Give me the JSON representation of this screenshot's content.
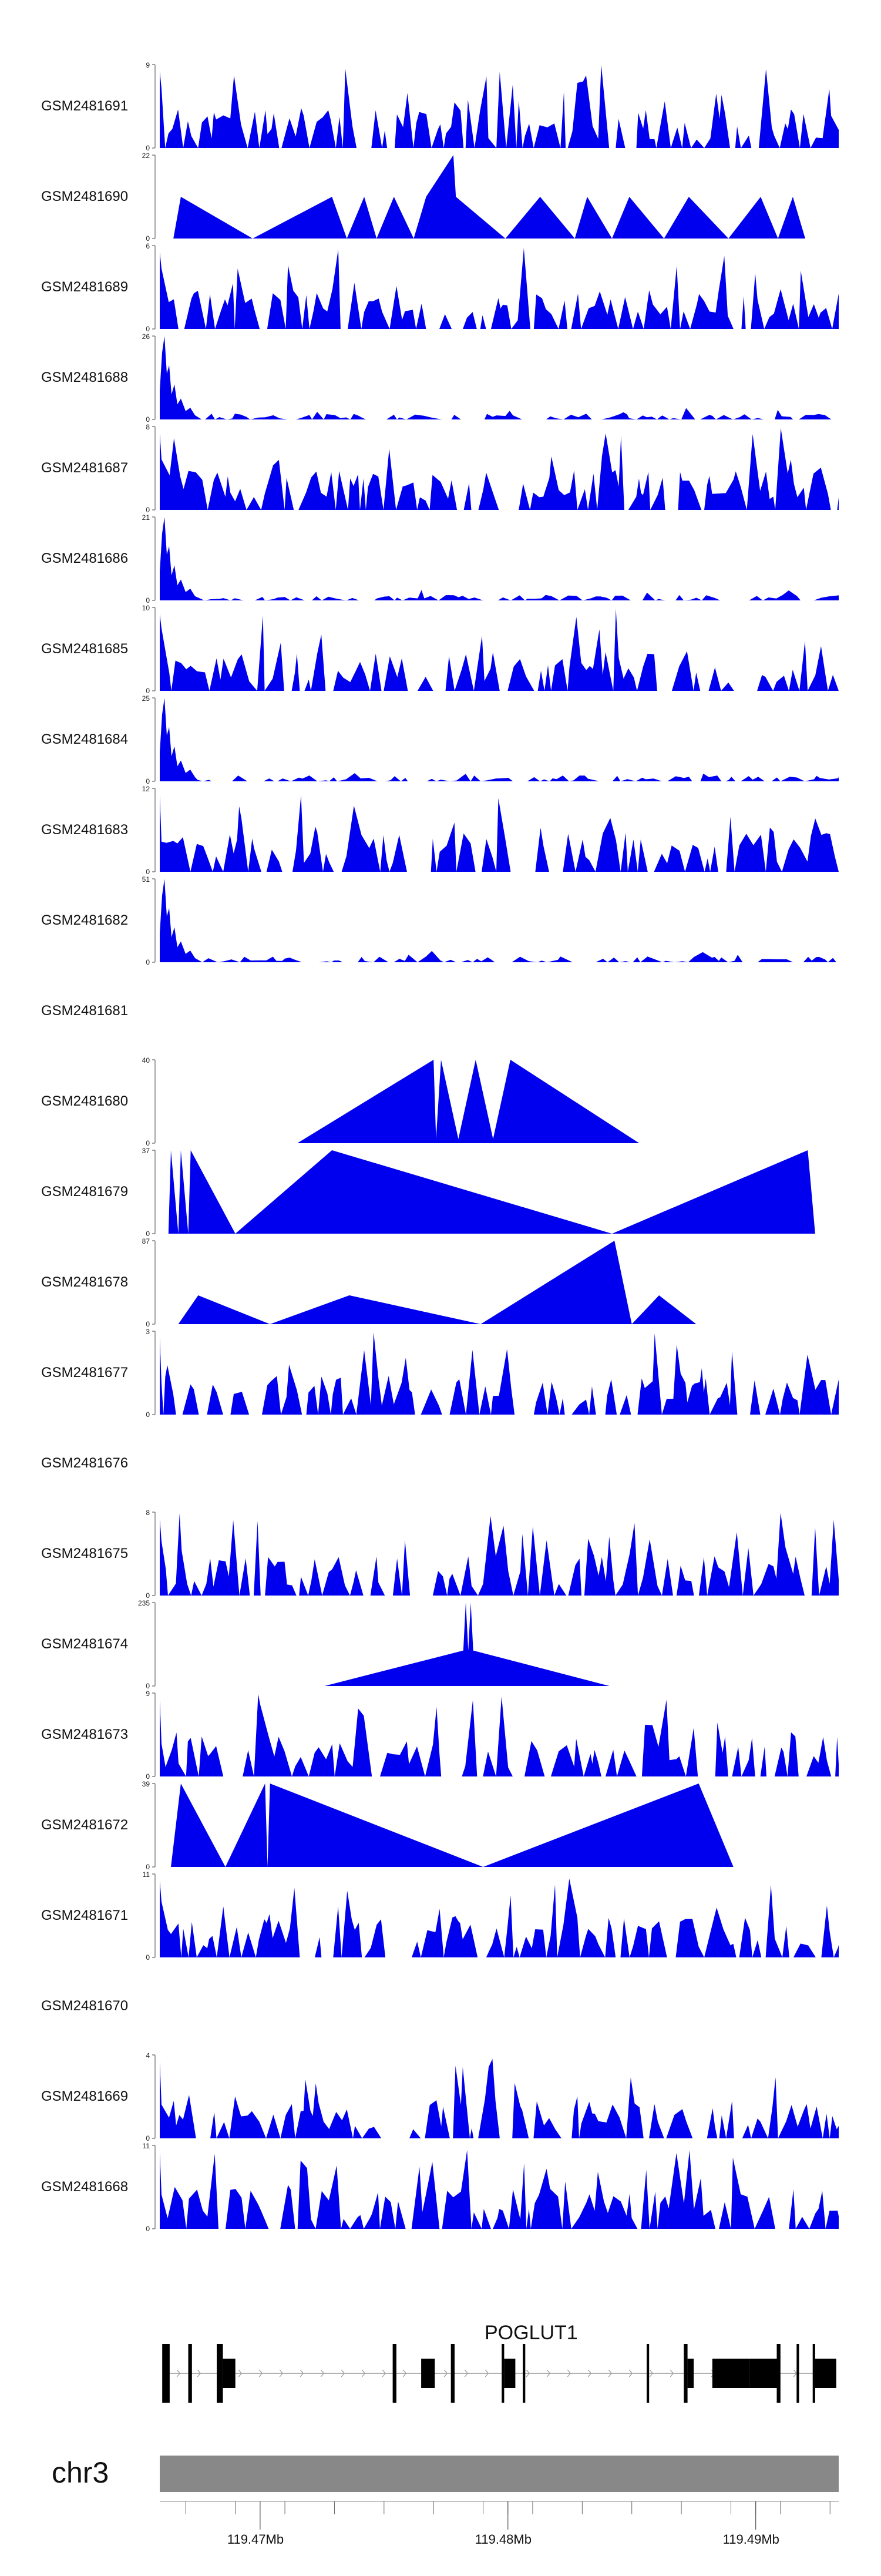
{
  "chart_data": {
    "type": "area",
    "colors": {
      "signal": "#0000ee",
      "gene": "#000000",
      "ideogram": "#888888",
      "intron": "#999999"
    },
    "tracks": [
      {
        "name": "GSM2481691",
        "ymax": 9,
        "shape": "dense-noise",
        "seed": 11
      },
      {
        "name": "GSM2481690",
        "ymax": 22,
        "shape": "sparse",
        "points": [
          [
            119.4665,
            0
          ],
          [
            119.4668,
            11
          ],
          [
            119.4697,
            0
          ],
          [
            119.4729,
            11
          ],
          [
            119.4735,
            0
          ],
          [
            119.4742,
            11
          ],
          [
            119.4747,
            0
          ],
          [
            119.4754,
            11
          ],
          [
            119.4762,
            0
          ],
          [
            119.4767,
            11
          ],
          [
            119.4778,
            22
          ],
          [
            119.4779,
            11
          ],
          [
            119.4799,
            0
          ],
          [
            119.4813,
            11
          ],
          [
            119.4827,
            0
          ],
          [
            119.4832,
            11
          ],
          [
            119.4842,
            0
          ],
          [
            119.4849,
            11
          ],
          [
            119.4863,
            0
          ],
          [
            119.4873,
            11
          ],
          [
            119.4889,
            0
          ],
          [
            119.4902,
            11
          ],
          [
            119.4909,
            0
          ],
          [
            119.4915,
            11
          ],
          [
            119.492,
            0
          ]
        ]
      },
      {
        "name": "GSM2481689",
        "ymax": 6,
        "shape": "dense-noise",
        "seed": 23
      },
      {
        "name": "GSM2481688",
        "ymax": 26,
        "shape": "peak-left",
        "seed": 31
      },
      {
        "name": "GSM2481687",
        "ymax": 8,
        "shape": "dense-noise",
        "seed": 37
      },
      {
        "name": "GSM2481686",
        "ymax": 21,
        "shape": "peak-left",
        "seed": 41
      },
      {
        "name": "GSM2481685",
        "ymax": 10,
        "shape": "dense-noise",
        "seed": 47
      },
      {
        "name": "GSM2481684",
        "ymax": 25,
        "shape": "peak-left",
        "seed": 53
      },
      {
        "name": "GSM2481683",
        "ymax": 12,
        "shape": "dense-noise",
        "seed": 59
      },
      {
        "name": "GSM2481682",
        "ymax": 51,
        "shape": "peak-left",
        "seed": 61
      },
      {
        "name": "GSM2481681",
        "ymax": null,
        "shape": "empty"
      },
      {
        "name": "GSM2481680",
        "ymax": 40,
        "shape": "sparse",
        "points": [
          [
            119.4715,
            0
          ],
          [
            119.477,
            40
          ],
          [
            119.4771,
            2
          ],
          [
            119.4773,
            40
          ],
          [
            119.478,
            2
          ],
          [
            119.4787,
            40
          ],
          [
            119.4794,
            2
          ],
          [
            119.4801,
            40
          ],
          [
            119.4853,
            0
          ]
        ]
      },
      {
        "name": "GSM2481679",
        "ymax": 37,
        "shape": "sparse",
        "points": [
          [
            119.4663,
            0
          ],
          [
            119.4664,
            37
          ],
          [
            119.4667,
            0
          ],
          [
            119.4668,
            37
          ],
          [
            119.4671,
            0
          ],
          [
            119.4672,
            37
          ],
          [
            119.469,
            0
          ],
          [
            119.4729,
            37
          ],
          [
            119.4842,
            0
          ],
          [
            119.4921,
            37
          ],
          [
            119.4924,
            0
          ]
        ]
      },
      {
        "name": "GSM2481678",
        "ymax": 87,
        "shape": "sparse",
        "points": [
          [
            119.4667,
            0
          ],
          [
            119.4675,
            30
          ],
          [
            119.4704,
            0
          ],
          [
            119.4736,
            30
          ],
          [
            119.4789,
            0
          ],
          [
            119.4843,
            87
          ],
          [
            119.485,
            0
          ],
          [
            119.4861,
            30
          ],
          [
            119.4876,
            0
          ]
        ]
      },
      {
        "name": "GSM2481677",
        "ymax": 3,
        "shape": "dense-noise",
        "seed": 71
      },
      {
        "name": "GSM2481676",
        "ymax": null,
        "shape": "empty"
      },
      {
        "name": "GSM2481675",
        "ymax": 8,
        "shape": "dense-noise",
        "seed": 79
      },
      {
        "name": "GSM2481674",
        "ymax": 235,
        "shape": "sparse",
        "points": [
          [
            119.4726,
            0
          ],
          [
            119.4782,
            100
          ],
          [
            119.4783,
            235
          ],
          [
            119.4784,
            100
          ],
          [
            119.4785,
            235
          ],
          [
            119.4786,
            100
          ],
          [
            119.4841,
            0
          ]
        ]
      },
      {
        "name": "GSM2481673",
        "ymax": 9,
        "shape": "dense-noise",
        "seed": 89
      },
      {
        "name": "GSM2481672",
        "ymax": 39,
        "shape": "sparse",
        "points": [
          [
            119.4664,
            0
          ],
          [
            119.4668,
            39
          ],
          [
            119.4686,
            0
          ],
          [
            119.4702,
            39
          ],
          [
            119.4703,
            0
          ],
          [
            119.4704,
            39
          ],
          [
            119.479,
            0
          ],
          [
            119.4877,
            39
          ],
          [
            119.4891,
            0
          ]
        ]
      },
      {
        "name": "GSM2481671",
        "ymax": 11,
        "shape": "dense-noise",
        "seed": 97
      },
      {
        "name": "GSM2481670",
        "ymax": null,
        "shape": "empty"
      },
      {
        "name": "GSM2481669",
        "ymax": 4,
        "shape": "dense-noise",
        "seed": 101
      },
      {
        "name": "GSM2481668",
        "ymax": 11,
        "shape": "dense-noise",
        "seed": 107
      }
    ],
    "gene": {
      "name": "POGLUT1",
      "start": 119.46605,
      "end": 119.49325,
      "exons": [
        {
          "start": 119.46605,
          "end": 119.46635,
          "tall": true
        },
        {
          "start": 119.4671,
          "end": 119.46725,
          "tall": true
        },
        {
          "start": 119.46825,
          "end": 119.4685,
          "tall": true
        },
        {
          "start": 119.4685,
          "end": 119.469,
          "tall": false
        },
        {
          "start": 119.47535,
          "end": 119.4755,
          "tall": true
        },
        {
          "start": 119.4765,
          "end": 119.47705,
          "tall": false
        },
        {
          "start": 119.4777,
          "end": 119.47785,
          "tall": true
        },
        {
          "start": 119.47975,
          "end": 119.47985,
          "tall": true
        },
        {
          "start": 119.47985,
          "end": 119.4803,
          "tall": false
        },
        {
          "start": 119.4806,
          "end": 119.4807,
          "tall": true
        },
        {
          "start": 119.4856,
          "end": 119.4857,
          "tall": true
        },
        {
          "start": 119.4871,
          "end": 119.48725,
          "tall": true
        },
        {
          "start": 119.48725,
          "end": 119.4875,
          "tall": false
        },
        {
          "start": 119.48825,
          "end": 119.48975,
          "tall": false
        },
        {
          "start": 119.48975,
          "end": 119.49085,
          "tall": false
        },
        {
          "start": 119.49085,
          "end": 119.491,
          "tall": true
        },
        {
          "start": 119.49165,
          "end": 119.49175,
          "tall": true
        },
        {
          "start": 119.4923,
          "end": 119.4924,
          "tall": true
        },
        {
          "start": 119.4924,
          "end": 119.49325,
          "tall": false
        }
      ]
    },
    "chromosome": "chr3",
    "axis": {
      "min": 119.46595,
      "max": 119.49335,
      "ticks": [
        119.467,
        119.469,
        119.471,
        119.473,
        119.475,
        119.477,
        119.479,
        119.48,
        119.481,
        119.483,
        119.485,
        119.487,
        119.489,
        119.49,
        119.491,
        119.493
      ],
      "labeled_ticks": [
        {
          "value": 119.47,
          "label": "119.47Mb"
        },
        {
          "value": 119.48,
          "label": "119.48Mb"
        },
        {
          "value": 119.49,
          "label": "119.49Mb"
        }
      ]
    }
  }
}
